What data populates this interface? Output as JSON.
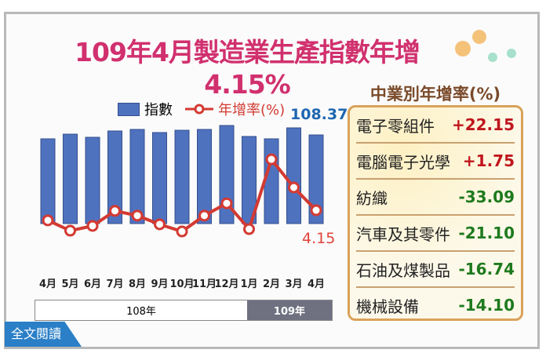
{
  "title": "109年4月製造業生產指數年增4.15%",
  "legend": {
    "index": "指數",
    "growth": "年增率(%)"
  },
  "labels": {
    "last_index": "108.37",
    "last_growth": "4.15"
  },
  "years": [
    "108年",
    "109年"
  ],
  "read_more": "全文閱讀",
  "industry": {
    "title": "中業別年增率(%)",
    "rows": [
      {
        "name": "電子零組件",
        "value": "+22.15",
        "color": "#c0161d"
      },
      {
        "name": "電腦電子光學",
        "value": "+1.75",
        "color": "#c0161d"
      },
      {
        "name": "紡織",
        "value": "-33.09",
        "color": "#1e7a1e"
      },
      {
        "name": "汽車及其零件",
        "value": "-21.10",
        "color": "#1e7a1e"
      },
      {
        "name": "石油及煤製品",
        "value": "-16.74",
        "color": "#1e7a1e"
      },
      {
        "name": "機械設備",
        "value": "-14.10",
        "color": "#1e7a1e"
      }
    ]
  },
  "chart_data": {
    "type": "bar+line",
    "categories": [
      "4月",
      "5月",
      "6月",
      "7月",
      "8月",
      "9月",
      "10月",
      "11月",
      "12月",
      "1月",
      "2月",
      "3月",
      "4月"
    ],
    "series": [
      {
        "name": "指數",
        "type": "bar",
        "color": "#4f72bf",
        "values": [
          103.6,
          109.3,
          105.5,
          113.2,
          115.1,
          111.3,
          114.1,
          115.1,
          119.9,
          106.5,
          103.6,
          117.0,
          108.37
        ]
      },
      {
        "name": "年增率(%)",
        "type": "line",
        "color": "#d33a32",
        "values": [
          1.6,
          -1.0,
          0.2,
          4.0,
          2.8,
          0.6,
          -1.2,
          2.8,
          5.9,
          -0.6,
          17.0,
          9.9,
          4.15
        ]
      }
    ],
    "legend": "top"
  }
}
